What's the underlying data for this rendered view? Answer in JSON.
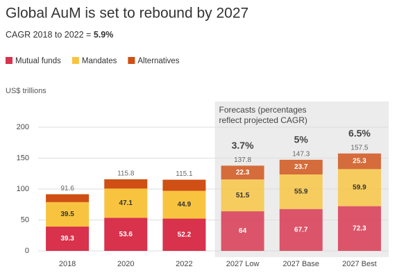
{
  "chart_data": {
    "type": "stacked-bar",
    "title": "Global AuM is set to rebound by 2027",
    "subtitle": "CAGR 2018 to 2022 =",
    "subtitle_value": "5.9%",
    "y_label": "US$ trillions",
    "forecast_note": [
      "Forecasts (percentages",
      "reflect projected CAGR)"
    ],
    "categories": [
      "2018",
      "2020",
      "2022",
      "2027 Low",
      "2027 Base",
      "2027 Best"
    ],
    "series": [
      {
        "name": "Mutual funds",
        "color": "#d8324c",
        "values": [
          39.3,
          53.6,
          52.2,
          64,
          67.7,
          72.3
        ]
      },
      {
        "name": "Mandates",
        "color": "#f8c440",
        "values": [
          39.5,
          47.1,
          44.9,
          51.5,
          55.9,
          59.9
        ]
      },
      {
        "name": "Alternatives",
        "color": "#cf4f14",
        "values": [
          12.8,
          15.1,
          18.0,
          22.3,
          23.7,
          25.3
        ],
        "value_labels": [
          null,
          null,
          null,
          "22.3",
          "23.7",
          "25.3"
        ]
      }
    ],
    "totals": [
      91.6,
      115.8,
      115.1,
      137.8,
      147.3,
      157.5
    ],
    "cagr_labels": [
      null,
      null,
      null,
      "3.7%",
      "5%",
      "6.5%"
    ],
    "ylim": [
      0,
      200
    ],
    "yticks": [
      0,
      50,
      100,
      150,
      200
    ],
    "grid": true
  }
}
